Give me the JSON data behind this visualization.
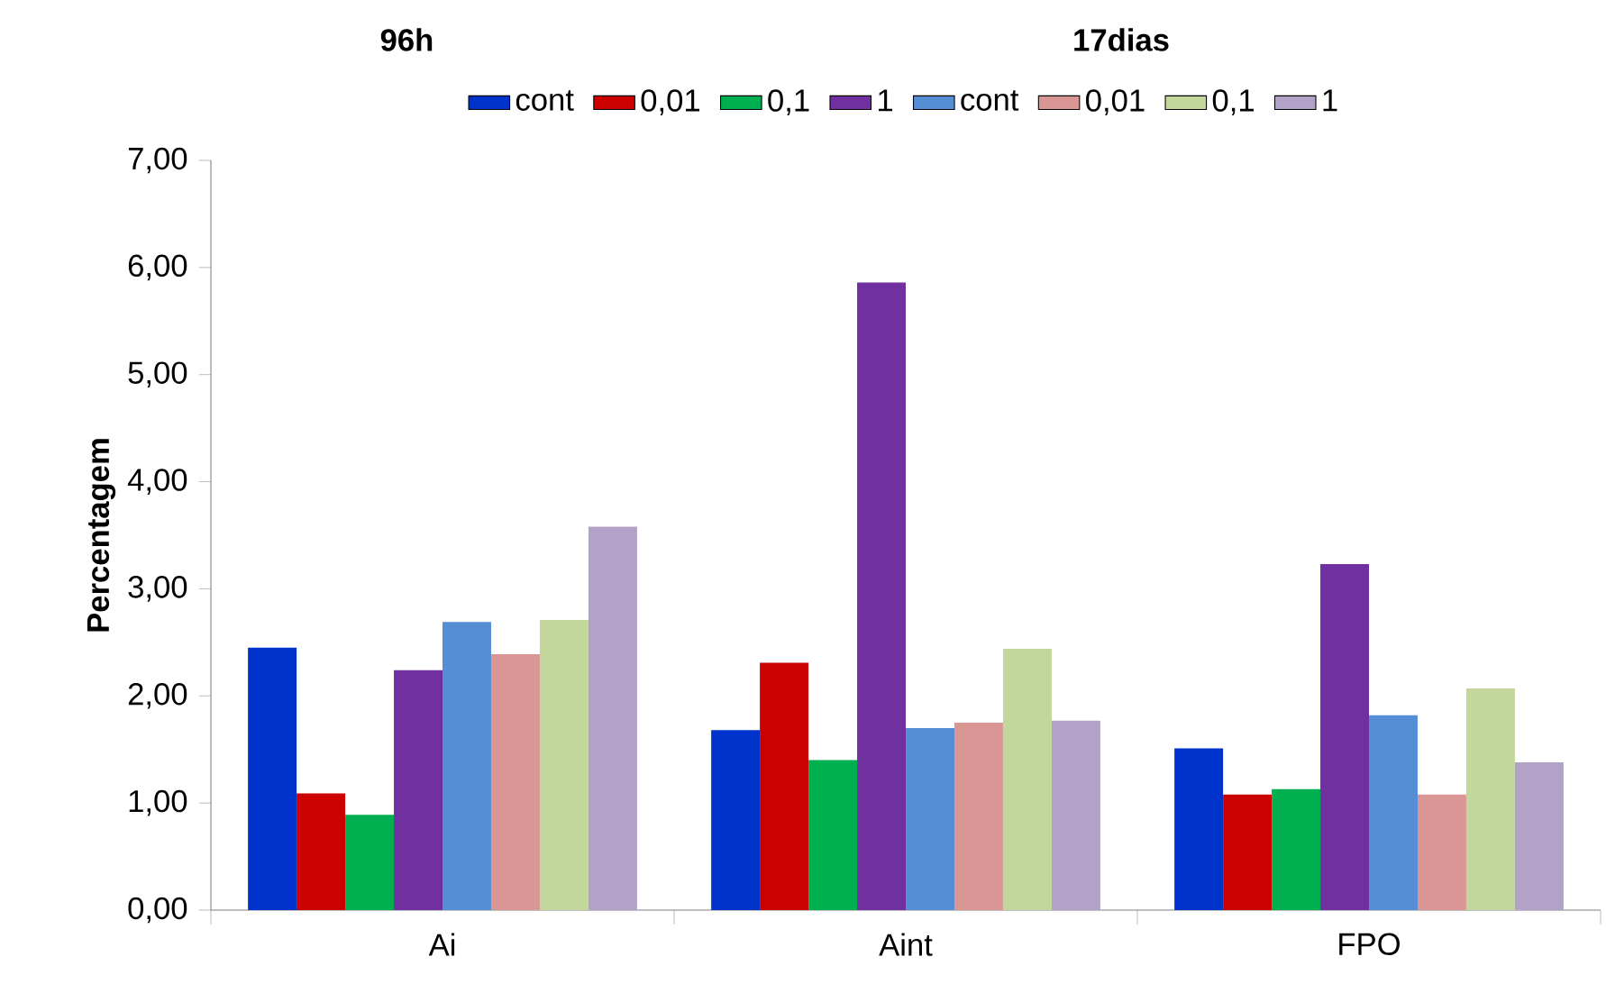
{
  "chart_data": {
    "type": "bar",
    "ylabel": "Percentagem",
    "categories": [
      "Ai",
      "Aint",
      "FPO"
    ],
    "annotations": [
      "96h",
      "17dias"
    ],
    "series": [
      {
        "name": "cont",
        "color": "#0033cc",
        "values": [
          2.45,
          1.68,
          1.51
        ]
      },
      {
        "name": "0,01",
        "color": "#cc0000",
        "values": [
          1.09,
          2.31,
          1.08
        ]
      },
      {
        "name": "0,1",
        "color": "#00b050",
        "values": [
          0.89,
          1.4,
          1.13
        ]
      },
      {
        "name": "1",
        "color": "#7030a0",
        "values": [
          2.24,
          5.86,
          3.23
        ]
      },
      {
        "name": "cont",
        "color": "#558ed5",
        "values": [
          2.69,
          1.7,
          1.82
        ]
      },
      {
        "name": "0,01",
        "color": "#d99694",
        "values": [
          2.39,
          1.75,
          1.08
        ]
      },
      {
        "name": "0,1",
        "color": "#c3d69b",
        "values": [
          2.71,
          2.44,
          2.07
        ]
      },
      {
        "name": "1",
        "color": "#b3a2c7",
        "values": [
          3.58,
          1.77,
          1.38
        ]
      }
    ],
    "ylim": [
      0,
      7
    ],
    "yticks": [
      {
        "value": 0,
        "label": "0,00"
      },
      {
        "value": 1,
        "label": "1,00"
      },
      {
        "value": 2,
        "label": "2,00"
      },
      {
        "value": 3,
        "label": "3,00"
      },
      {
        "value": 4,
        "label": "4,00"
      },
      {
        "value": 5,
        "label": "5,00"
      },
      {
        "value": 6,
        "label": "6,00"
      },
      {
        "value": 7,
        "label": "7,00"
      }
    ],
    "legend": "top",
    "grid": false
  }
}
